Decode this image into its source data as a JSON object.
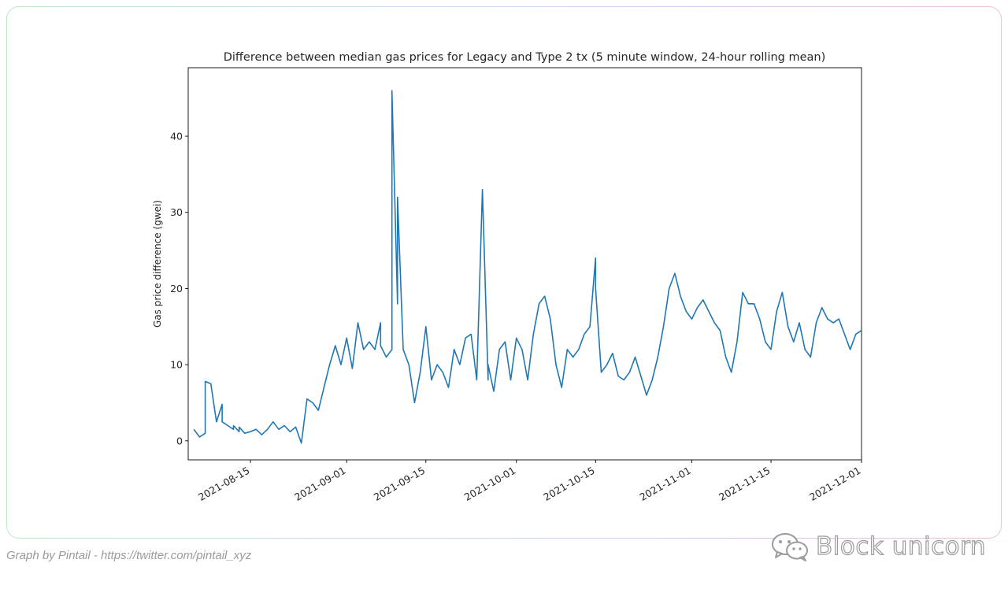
{
  "caption": "Graph by Pintail - https://twitter.com/pintail_xyz",
  "watermark": {
    "text": "Block unicorn",
    "icon": "wechat-logo-icon"
  },
  "colors": {
    "line": "#1f77b4",
    "axis": "#000000",
    "text": "#262626"
  },
  "chart_data": {
    "type": "line",
    "title": "Difference between median gas prices for Legacy and Type 2 tx (5 minute window, 24-hour rolling mean)",
    "xlabel": "",
    "ylabel": "Gas price difference (gwei)",
    "grid": false,
    "xlim": [
      "2021-08-04",
      "2021-12-01"
    ],
    "ylim": [
      -2.5,
      49
    ],
    "x_ticks": [
      "2021-08-15",
      "2021-09-01",
      "2021-09-15",
      "2021-10-01",
      "2021-10-15",
      "2021-11-01",
      "2021-11-15",
      "2021-12-01"
    ],
    "y_ticks": [
      0,
      10,
      20,
      30,
      40
    ],
    "series": [
      {
        "x": [
          "2021-08-05",
          "2021-08-06",
          "2021-08-07",
          "2021-08-07",
          "2021-08-08",
          "2021-08-09",
          "2021-08-10",
          "2021-08-10",
          "2021-08-11",
          "2021-08-12",
          "2021-08-12",
          "2021-08-13",
          "2021-08-13",
          "2021-08-14",
          "2021-08-15",
          "2021-08-16",
          "2021-08-17",
          "2021-08-18",
          "2021-08-19",
          "2021-08-20",
          "2021-08-21",
          "2021-08-22",
          "2021-08-23",
          "2021-08-24",
          "2021-08-25",
          "2021-08-26",
          "2021-08-27",
          "2021-08-28",
          "2021-08-29",
          "2021-08-30",
          "2021-08-31",
          "2021-09-01",
          "2021-09-02",
          "2021-09-03",
          "2021-09-04",
          "2021-09-05",
          "2021-09-06",
          "2021-09-07",
          "2021-09-07",
          "2021-09-08",
          "2021-09-09",
          "2021-09-09",
          "2021-09-10",
          "2021-09-10",
          "2021-09-11",
          "2021-09-12",
          "2021-09-13",
          "2021-09-14",
          "2021-09-15",
          "2021-09-16",
          "2021-09-17",
          "2021-09-18",
          "2021-09-19",
          "2021-09-20",
          "2021-09-21",
          "2021-09-22",
          "2021-09-23",
          "2021-09-24",
          "2021-09-25",
          "2021-09-26",
          "2021-09-26",
          "2021-09-27",
          "2021-09-28",
          "2021-09-29",
          "2021-09-30",
          "2021-10-01",
          "2021-10-02",
          "2021-10-03",
          "2021-10-04",
          "2021-10-05",
          "2021-10-06",
          "2021-10-07",
          "2021-10-08",
          "2021-10-09",
          "2021-10-10",
          "2021-10-11",
          "2021-10-12",
          "2021-10-13",
          "2021-10-14",
          "2021-10-15",
          "2021-10-15",
          "2021-10-16",
          "2021-10-17",
          "2021-10-18",
          "2021-10-19",
          "2021-10-20",
          "2021-10-21",
          "2021-10-22",
          "2021-10-23",
          "2021-10-24",
          "2021-10-25",
          "2021-10-26",
          "2021-10-27",
          "2021-10-28",
          "2021-10-29",
          "2021-10-30",
          "2021-10-31",
          "2021-11-01",
          "2021-11-02",
          "2021-11-03",
          "2021-11-04",
          "2021-11-05",
          "2021-11-06",
          "2021-11-07",
          "2021-11-08",
          "2021-11-09",
          "2021-11-10",
          "2021-11-11",
          "2021-11-12",
          "2021-11-13",
          "2021-11-14",
          "2021-11-15",
          "2021-11-16",
          "2021-11-17",
          "2021-11-18",
          "2021-11-19",
          "2021-11-20",
          "2021-11-21",
          "2021-11-22",
          "2021-11-23",
          "2021-11-24",
          "2021-11-25",
          "2021-11-26",
          "2021-11-27",
          "2021-11-28",
          "2021-11-29",
          "2021-11-30",
          "2021-12-01"
        ],
        "values": [
          1.5,
          0.5,
          1.0,
          7.8,
          7.5,
          2.5,
          4.8,
          2.5,
          2.0,
          1.5,
          2.0,
          1.2,
          1.8,
          1.0,
          1.2,
          1.5,
          0.8,
          1.5,
          2.5,
          1.5,
          2.0,
          1.2,
          1.8,
          -0.3,
          5.5,
          5.0,
          4.0,
          7.0,
          10.0,
          12.5,
          10.0,
          13.5,
          9.5,
          15.5,
          12.0,
          13.0,
          12.0,
          15.5,
          12.5,
          11.0,
          12.0,
          46.0,
          18.0,
          32.0,
          12.0,
          10.0,
          5.0,
          9.0,
          15.0,
          8.0,
          10.0,
          9.0,
          7.0,
          12.0,
          10.0,
          13.5,
          14.0,
          8.0,
          33.0,
          8.0,
          10.0,
          6.5,
          12.0,
          13.0,
          8.0,
          13.5,
          12.0,
          8.0,
          14.0,
          18.0,
          19.0,
          16.0,
          10.0,
          7.0,
          12.0,
          11.0,
          12.0,
          14.0,
          15.0,
          24.0,
          20.0,
          9.0,
          10.0,
          11.5,
          8.5,
          8.0,
          9.0,
          11.0,
          8.5,
          6.0,
          8.0,
          11.0,
          15.0,
          20.0,
          22.0,
          19.0,
          17.0,
          16.0,
          17.5,
          18.5,
          17.0,
          15.5,
          14.5,
          11.0,
          9.0,
          13.0,
          19.5,
          18.0,
          18.0,
          16.0,
          13.0,
          12.0,
          17.0,
          19.5,
          15.0,
          13.0,
          15.5,
          12.0,
          11.0,
          15.5,
          17.5,
          16.0,
          15.5,
          16.0,
          14.0,
          12.0,
          14.0,
          14.5
        ]
      }
    ]
  }
}
